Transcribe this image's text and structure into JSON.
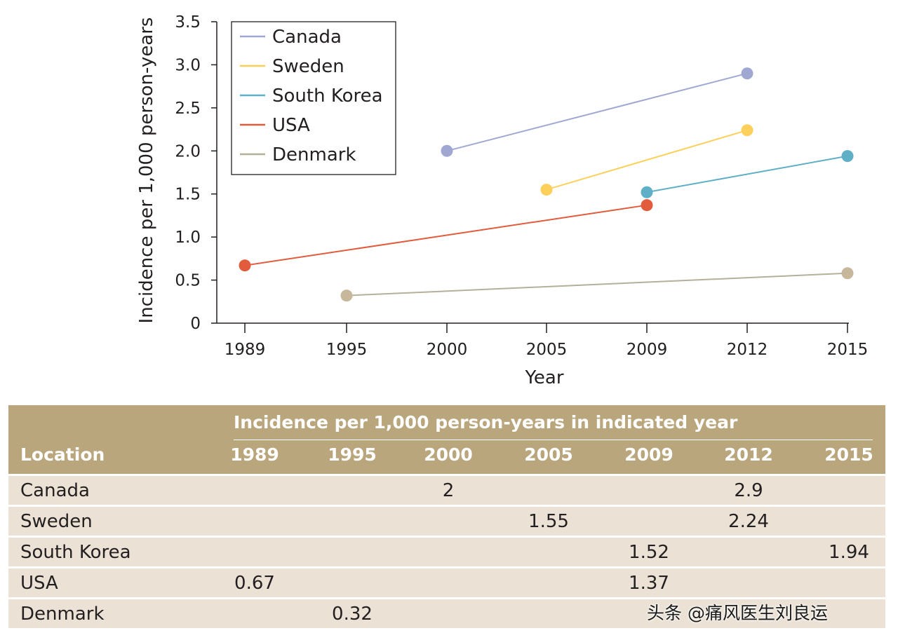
{
  "chart_data": {
    "type": "line",
    "xlabel": "Year",
    "ylabel": "Incidence per 1,000 person-years",
    "x_categories": [
      "1989",
      "1995",
      "2000",
      "2005",
      "2009",
      "2012",
      "2015"
    ],
    "ylim": [
      0,
      3.5
    ],
    "yticks": [
      "0",
      "0.5",
      "1.0",
      "1.5",
      "2.0",
      "2.5",
      "3.0",
      "3.5"
    ],
    "legend_position": "top-left",
    "grid": false,
    "series": [
      {
        "name": "Canada",
        "color": "#a0a8d2",
        "points": [
          {
            "x": "2000",
            "y": 2.0
          },
          {
            "x": "2012",
            "y": 2.9
          }
        ]
      },
      {
        "name": "Sweden",
        "color": "#fdd05c",
        "points": [
          {
            "x": "2005",
            "y": 1.55
          },
          {
            "x": "2012",
            "y": 2.24
          }
        ]
      },
      {
        "name": "South Korea",
        "color": "#5fafc6",
        "points": [
          {
            "x": "2009",
            "y": 1.52
          },
          {
            "x": "2015",
            "y": 1.94
          }
        ]
      },
      {
        "name": "USA",
        "color": "#e15b3c",
        "points": [
          {
            "x": "1989",
            "y": 0.67
          },
          {
            "x": "2009",
            "y": 1.37
          }
        ]
      },
      {
        "name": "Denmark",
        "color": "#c8b89b",
        "line_color": "#b4b09c",
        "points": [
          {
            "x": "1995",
            "y": 0.32
          },
          {
            "x": "2015",
            "y": 0.58
          }
        ]
      }
    ]
  },
  "table": {
    "spanner": "Incidence per 1,000 person-years in indicated year",
    "location_header": "Location",
    "years": [
      "1989",
      "1995",
      "2000",
      "2005",
      "2009",
      "2012",
      "2015"
    ],
    "rows": [
      {
        "name": "Canada",
        "cells": [
          "",
          "",
          "2",
          "",
          "",
          "2.9",
          ""
        ]
      },
      {
        "name": "Sweden",
        "cells": [
          "",
          "",
          "",
          "1.55",
          "",
          "2.24",
          ""
        ]
      },
      {
        "name": "South Korea",
        "cells": [
          "",
          "",
          "",
          "",
          "1.52",
          "",
          "1.94"
        ]
      },
      {
        "name": "USA",
        "cells": [
          "0.67",
          "",
          "",
          "",
          "1.37",
          "",
          ""
        ]
      },
      {
        "name": "Denmark",
        "cells": [
          "",
          "0.32",
          "",
          "",
          "",
          "",
          ""
        ]
      }
    ]
  },
  "watermark": "头条 @痛风医生刘良运",
  "colors": {
    "header_bg": "#baa67c",
    "row_bg": "#ebe2d5"
  }
}
